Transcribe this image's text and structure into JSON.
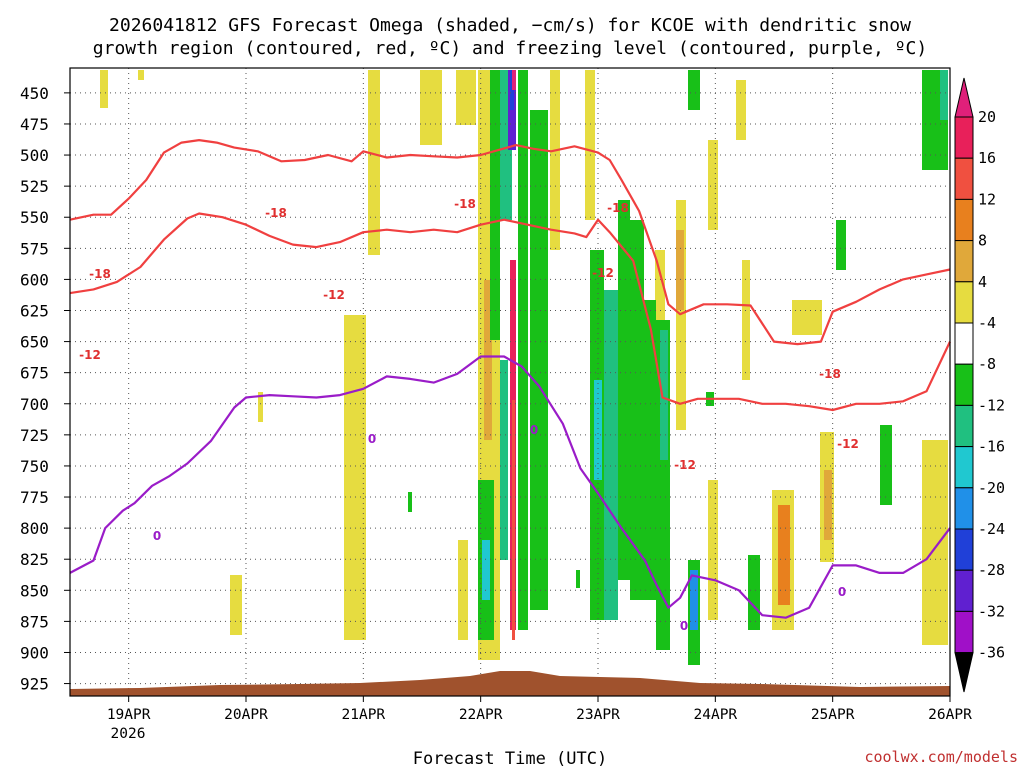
{
  "chart_data": {
    "type": "time-height",
    "title_line1": "2026041812 GFS Forecast Omega (shaded, −cm/s) for KCOE with dendritic snow",
    "title_line2": "growth region (contoured, red, ºC) and freezing level (contoured, purple, ºC)",
    "xlabel": "Forecast Time (UTC)",
    "credit": "coolwx.com/models",
    "x_range_days": [
      -0.5,
      7.0
    ],
    "x_ticks": [
      {
        "day": 0,
        "label": "19APR"
      },
      {
        "day": 1,
        "label": "20APR"
      },
      {
        "day": 2,
        "label": "21APR"
      },
      {
        "day": 3,
        "label": "22APR"
      },
      {
        "day": 4,
        "label": "23APR"
      },
      {
        "day": 5,
        "label": "24APR"
      },
      {
        "day": 6,
        "label": "25APR"
      },
      {
        "day": 7,
        "label": "26APR"
      }
    ],
    "year_label": "2026",
    "y_levels_hPa": [
      450,
      475,
      500,
      525,
      550,
      575,
      600,
      625,
      650,
      675,
      700,
      725,
      750,
      775,
      800,
      825,
      850,
      875,
      900,
      925
    ],
    "y_range_hPa": [
      430,
      935
    ],
    "colorbar": {
      "labels": [
        "20",
        "16",
        "12",
        "8",
        "4",
        "-4",
        "-8",
        "-12",
        "-16",
        "-20",
        "-24",
        "-28",
        "-32",
        "-36"
      ],
      "colors": [
        "#e8205a",
        "#f05040",
        "#e8801e",
        "#e0a83a",
        "#e6dc40",
        "#ffffff",
        "#18c018",
        "#20c080",
        "#20c8d0",
        "#2090e8",
        "#2040d8",
        "#6020d0",
        "#a010c8",
        "#a0a0a0"
      ],
      "top_arrow_color": "#e0207a",
      "bottom_arrow_color": "#000000"
    },
    "contour_labels": {
      "m18": "-18",
      "m12": "-12",
      "zero": "0"
    },
    "series": [
      {
        "name": "minus-18C",
        "color": "#f04040",
        "points": [
          [
            -0.5,
            552
          ],
          [
            -0.3,
            548
          ],
          [
            -0.15,
            548
          ],
          [
            0.0,
            535
          ],
          [
            0.15,
            520
          ],
          [
            0.3,
            498
          ],
          [
            0.45,
            490
          ],
          [
            0.6,
            488
          ],
          [
            0.75,
            490
          ],
          [
            0.9,
            494
          ],
          [
            1.1,
            497
          ],
          [
            1.3,
            505
          ],
          [
            1.5,
            504
          ],
          [
            1.7,
            500
          ],
          [
            1.9,
            505
          ],
          [
            2.0,
            497
          ],
          [
            2.2,
            502
          ],
          [
            2.4,
            500
          ],
          [
            2.6,
            501
          ],
          [
            2.8,
            502
          ],
          [
            3.0,
            500
          ],
          [
            3.15,
            496
          ],
          [
            3.3,
            492
          ],
          [
            3.45,
            495
          ],
          [
            3.6,
            497
          ],
          [
            3.8,
            493
          ],
          [
            4.0,
            498
          ],
          [
            4.1,
            504
          ],
          [
            4.2,
            520
          ],
          [
            4.35,
            545
          ],
          [
            4.5,
            585
          ],
          [
            4.6,
            620
          ],
          [
            4.7,
            628
          ],
          [
            4.9,
            620
          ],
          [
            5.1,
            620
          ],
          [
            5.3,
            621
          ],
          [
            5.5,
            650
          ],
          [
            5.7,
            652
          ],
          [
            5.9,
            650
          ],
          [
            6.0,
            626
          ],
          [
            6.2,
            618
          ],
          [
            6.4,
            608
          ],
          [
            6.6,
            600
          ],
          [
            6.8,
            596
          ],
          [
            7.0,
            592
          ]
        ]
      },
      {
        "name": "minus-12C",
        "color": "#f04040",
        "points": [
          [
            -0.5,
            611
          ],
          [
            -0.3,
            608
          ],
          [
            -0.1,
            602
          ],
          [
            0.1,
            590
          ],
          [
            0.3,
            568
          ],
          [
            0.5,
            551
          ],
          [
            0.6,
            547
          ],
          [
            0.8,
            550
          ],
          [
            1.0,
            556
          ],
          [
            1.2,
            565
          ],
          [
            1.4,
            572
          ],
          [
            1.6,
            574
          ],
          [
            1.8,
            570
          ],
          [
            2.0,
            562
          ],
          [
            2.2,
            560
          ],
          [
            2.4,
            562
          ],
          [
            2.6,
            560
          ],
          [
            2.8,
            562
          ],
          [
            3.0,
            556
          ],
          [
            3.2,
            552
          ],
          [
            3.4,
            556
          ],
          [
            3.6,
            560
          ],
          [
            3.8,
            563
          ],
          [
            3.9,
            566
          ],
          [
            4.0,
            552
          ],
          [
            4.1,
            562
          ],
          [
            4.3,
            585
          ],
          [
            4.45,
            640
          ],
          [
            4.55,
            695
          ],
          [
            4.7,
            700
          ],
          [
            4.85,
            696
          ],
          [
            5.0,
            696
          ],
          [
            5.2,
            696
          ],
          [
            5.4,
            700
          ],
          [
            5.6,
            700
          ],
          [
            5.8,
            702
          ],
          [
            6.0,
            705
          ],
          [
            6.2,
            700
          ],
          [
            6.4,
            700
          ],
          [
            6.6,
            698
          ],
          [
            6.8,
            690
          ],
          [
            7.0,
            650
          ]
        ]
      },
      {
        "name": "zero-C",
        "color": "#9a1cc8",
        "points": [
          [
            -0.5,
            836
          ],
          [
            -0.3,
            826
          ],
          [
            -0.2,
            800
          ],
          [
            -0.05,
            786
          ],
          [
            0.05,
            780
          ],
          [
            0.2,
            766
          ],
          [
            0.35,
            758
          ],
          [
            0.5,
            748
          ],
          [
            0.7,
            730
          ],
          [
            0.9,
            703
          ],
          [
            1.0,
            695
          ],
          [
            1.2,
            693
          ],
          [
            1.4,
            694
          ],
          [
            1.6,
            695
          ],
          [
            1.8,
            693
          ],
          [
            2.0,
            688
          ],
          [
            2.2,
            678
          ],
          [
            2.4,
            680
          ],
          [
            2.6,
            683
          ],
          [
            2.8,
            676
          ],
          [
            3.0,
            662
          ],
          [
            3.2,
            662
          ],
          [
            3.35,
            670
          ],
          [
            3.5,
            686
          ],
          [
            3.7,
            716
          ],
          [
            3.85,
            752
          ],
          [
            4.0,
            772
          ],
          [
            4.2,
            800
          ],
          [
            4.4,
            826
          ],
          [
            4.5,
            846
          ],
          [
            4.6,
            864
          ],
          [
            4.7,
            856
          ],
          [
            4.8,
            838
          ],
          [
            5.0,
            842
          ],
          [
            5.2,
            850
          ],
          [
            5.4,
            870
          ],
          [
            5.6,
            872
          ],
          [
            5.8,
            864
          ],
          [
            6.0,
            830
          ],
          [
            6.2,
            830
          ],
          [
            6.4,
            836
          ],
          [
            6.6,
            836
          ],
          [
            6.8,
            825
          ],
          [
            7.0,
            800
          ]
        ]
      }
    ]
  }
}
